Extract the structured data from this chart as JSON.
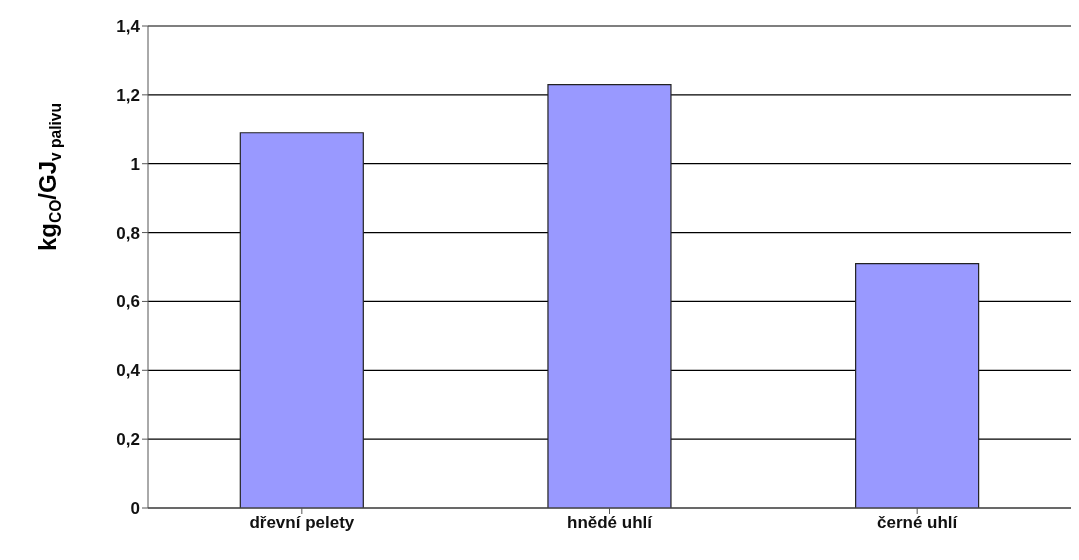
{
  "chart_data": {
    "type": "bar",
    "ylabel": "kg$_{CO}$/GJ$_{v palivu}$",
    "categories": [
      "dřevní pelety",
      "hnědé uhlí",
      "černé uhlí"
    ],
    "values": [
      1.09,
      1.23,
      0.71
    ],
    "color": "#9999ff",
    "ylim": [
      0,
      1.4
    ],
    "yticks": [
      {
        "value": 0,
        "label": "0"
      },
      {
        "value": 0.2,
        "label": "0,2"
      },
      {
        "value": 0.4,
        "label": "0,4"
      },
      {
        "value": 0.6,
        "label": "0,6"
      },
      {
        "value": 0.8,
        "label": "0,8"
      },
      {
        "value": 1,
        "label": "1"
      },
      {
        "value": 1.2,
        "label": "1,2"
      },
      {
        "value": 1.4,
        "label": "1,4"
      }
    ],
    "grid": "y",
    "legend": false
  }
}
